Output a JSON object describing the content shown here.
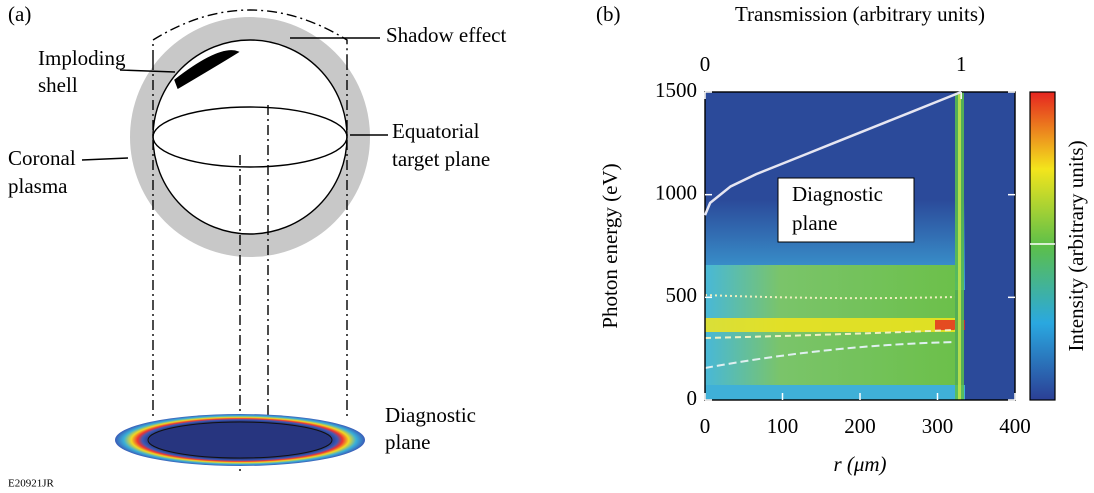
{
  "panel_a": {
    "label": "(a)",
    "shell": [
      "Imploding",
      "shell"
    ],
    "shadow": "Shadow effect",
    "corona": [
      "Coronal",
      "plasma"
    ],
    "equator": [
      "Equatorial",
      "target plane"
    ],
    "diagnostic": [
      "Diagnostic",
      "plane"
    ],
    "code": "E20921JR"
  },
  "chart_data": {
    "type": "heatmap",
    "label": "(b)",
    "title": "Transmission (arbitrary units)",
    "x_label": "r (μm)",
    "y_label": "Photon energy (eV)",
    "colorbar_label": "Intensity (arbitrary units)",
    "annotation": [
      "Diagnostic",
      "plane"
    ],
    "xlim": [
      0,
      400
    ],
    "xticks": [
      0,
      100,
      200,
      300,
      400
    ],
    "ylim": [
      0,
      1500
    ],
    "yticks": [
      0,
      500,
      1000,
      1500
    ],
    "x2lim": [
      0,
      1.21
    ],
    "x2ticks": [
      0,
      1
    ],
    "colormap": [
      "#2b3f95",
      "#2aa8e0",
      "#5cbf4a",
      "#f3e51c",
      "#e52520"
    ],
    "series": [
      {
        "color": "#e6e6f2",
        "axis": "x2",
        "x": [
          0,
          0.02,
          0.1,
          0.2,
          0.3,
          0.4,
          0.5,
          0.6,
          0.7,
          0.8,
          0.9,
          1
        ],
        "values": [
          900,
          960,
          1040,
          1100,
          1150,
          1200,
          1250,
          1300,
          1350,
          1400,
          1450,
          1500
        ]
      }
    ]
  }
}
